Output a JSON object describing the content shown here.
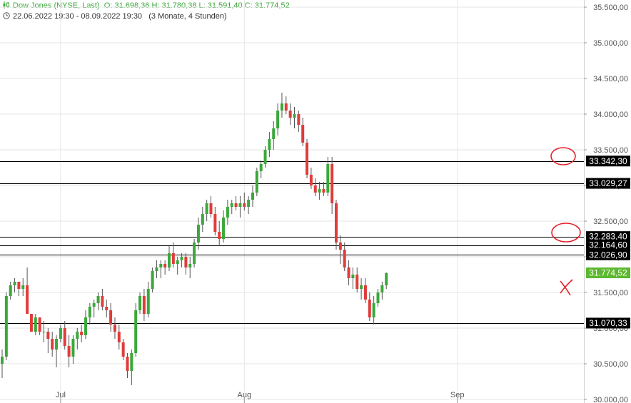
{
  "header": {
    "symbol": "Dow Jones (NYSE, Last)",
    "ohlc": "O: 31.698,36   H: 31.780,38   L: 31.591,40   C: 31.774,52",
    "range": "22.06.2022 19:30 - 08.09.2022 19:30",
    "period": "(3 Monate, 4 Stunden)"
  },
  "chart_data": {
    "type": "candlestick",
    "ylim": [
      29950,
      35600
    ],
    "y_ticks": [
      "30.000,00",
      "30.500,00",
      "31.000,00",
      "31.500,00",
      "32.000,00",
      "32.500,00",
      "33.000,00",
      "33.500,00",
      "34.000,00",
      "34.500,00",
      "35.000,00",
      "35.500,00"
    ],
    "y_tick_values": [
      30000,
      30500,
      31000,
      31500,
      32000,
      32500,
      33000,
      33500,
      34000,
      34500,
      35000,
      35500
    ],
    "x_labels": [
      {
        "label": "Jul",
        "index": 14
      },
      {
        "label": "Aug",
        "index": 58
      },
      {
        "label": "Sep",
        "index": 109
      }
    ],
    "candles": [
      [
        30500,
        30700,
        30300,
        30600
      ],
      [
        30600,
        31500,
        30550,
        31450
      ],
      [
        31450,
        31650,
        31400,
        31600
      ],
      [
        31600,
        31700,
        31500,
        31650
      ],
      [
        31650,
        31650,
        31450,
        31550
      ],
      [
        31550,
        31700,
        31450,
        31600
      ],
      [
        31600,
        31850,
        31200,
        31200
      ],
      [
        31200,
        31200,
        30950,
        30950
      ],
      [
        30950,
        31200,
        30900,
        31150
      ],
      [
        31150,
        31150,
        30900,
        30950
      ],
      [
        30950,
        31100,
        30800,
        30950
      ],
      [
        30950,
        31000,
        30650,
        30850
      ],
      [
        30850,
        30950,
        30600,
        30700
      ],
      [
        30700,
        30900,
        30450,
        30850
      ],
      [
        30850,
        31050,
        30800,
        31000
      ],
      [
        31000,
        31100,
        30700,
        30750
      ],
      [
        30750,
        30900,
        30450,
        30600
      ],
      [
        30600,
        30900,
        30500,
        30850
      ],
      [
        30850,
        31000,
        30700,
        30950
      ],
      [
        30950,
        31050,
        30800,
        30900
      ],
      [
        30900,
        31250,
        30850,
        31150
      ],
      [
        31150,
        31350,
        31050,
        31300
      ],
      [
        31300,
        31400,
        31150,
        31350
      ],
      [
        31350,
        31500,
        31250,
        31450
      ],
      [
        31450,
        31550,
        31250,
        31300
      ],
      [
        31300,
        31400,
        31150,
        31250
      ],
      [
        31250,
        31350,
        30950,
        31050
      ],
      [
        31050,
        31150,
        30850,
        30950
      ],
      [
        30950,
        31050,
        30700,
        30800
      ],
      [
        30800,
        30850,
        30550,
        30600
      ],
      [
        30600,
        30650,
        30300,
        30400
      ],
      [
        30400,
        30700,
        30200,
        30650
      ],
      [
        30650,
        31350,
        30600,
        31250
      ],
      [
        31250,
        31500,
        31200,
        31450
      ],
      [
        31450,
        31550,
        31100,
        31200
      ],
      [
        31200,
        31650,
        31150,
        31550
      ],
      [
        31550,
        31850,
        31500,
        31800
      ],
      [
        31800,
        31950,
        31700,
        31850
      ],
      [
        31850,
        31950,
        31700,
        31900
      ],
      [
        31900,
        31950,
        31750,
        31850
      ],
      [
        31850,
        32150,
        31800,
        32050
      ],
      [
        32050,
        32200,
        31850,
        31900
      ],
      [
        31900,
        32000,
        31750,
        31950
      ],
      [
        31950,
        32050,
        31850,
        32000
      ],
      [
        32000,
        32050,
        31750,
        31850
      ],
      [
        31850,
        32000,
        31700,
        31900
      ],
      [
        31900,
        32250,
        31850,
        32200
      ],
      [
        32200,
        32550,
        32100,
        32450
      ],
      [
        32450,
        32700,
        32350,
        32600
      ],
      [
        32600,
        32800,
        32500,
        32750
      ],
      [
        32750,
        32850,
        32550,
        32600
      ],
      [
        32600,
        32700,
        32300,
        32350
      ],
      [
        32350,
        32500,
        32150,
        32250
      ],
      [
        32250,
        32650,
        32200,
        32550
      ],
      [
        32550,
        32800,
        32450,
        32700
      ],
      [
        32700,
        32800,
        32600,
        32750
      ],
      [
        32750,
        32850,
        32650,
        32700
      ],
      [
        32700,
        32850,
        32550,
        32750
      ],
      [
        32750,
        32900,
        32650,
        32700
      ],
      [
        32700,
        32850,
        32600,
        32800
      ],
      [
        32800,
        33000,
        32700,
        32900
      ],
      [
        32900,
        33250,
        32850,
        33200
      ],
      [
        33200,
        33350,
        33100,
        33300
      ],
      [
        33300,
        33550,
        33250,
        33500
      ],
      [
        33500,
        33750,
        33400,
        33650
      ],
      [
        33650,
        33900,
        33500,
        33800
      ],
      [
        33800,
        34150,
        33700,
        34050
      ],
      [
        34050,
        34300,
        33950,
        34150
      ],
      [
        34150,
        34250,
        34000,
        34050
      ],
      [
        34050,
        34150,
        33850,
        33950
      ],
      [
        33950,
        34100,
        33800,
        34000
      ],
      [
        34000,
        34050,
        33750,
        33850
      ],
      [
        33850,
        33950,
        33550,
        33600
      ],
      [
        33600,
        33650,
        33100,
        33150
      ],
      [
        33150,
        33250,
        32950,
        33000
      ],
      [
        33000,
        33100,
        32850,
        32900
      ],
      [
        32900,
        33050,
        32800,
        32950
      ],
      [
        32950,
        33050,
        32850,
        32900
      ],
      [
        32900,
        33400,
        32850,
        33300
      ],
      [
        33300,
        33400,
        32600,
        32750
      ],
      [
        32750,
        32800,
        32100,
        32200
      ],
      [
        32200,
        32300,
        31900,
        32100
      ],
      [
        32100,
        32200,
        31800,
        31850
      ],
      [
        31850,
        31950,
        31600,
        31700
      ],
      [
        31700,
        31850,
        31550,
        31750
      ],
      [
        31750,
        31850,
        31500,
        31550
      ],
      [
        31550,
        31700,
        31400,
        31600
      ],
      [
        31600,
        31700,
        31350,
        31400
      ],
      [
        31400,
        31500,
        31100,
        31150
      ],
      [
        31150,
        31450,
        31050,
        31350
      ],
      [
        31350,
        31550,
        31300,
        31500
      ],
      [
        31500,
        31650,
        31400,
        31600
      ],
      [
        31600,
        31780,
        31550,
        31770
      ]
    ],
    "levels": [
      {
        "value": 33342.3,
        "label": "33.342,30"
      },
      {
        "value": 33029.27,
        "label": "33.029,27"
      },
      {
        "value": 32283.4,
        "label": "32.283,40"
      },
      {
        "value": 32164.6,
        "label": "32.164,60"
      },
      {
        "value": 32026.9,
        "label": "32.026,90"
      },
      {
        "value": 31070.33,
        "label": "31.070,33"
      }
    ],
    "current": {
      "value": 31774.52,
      "label": "31.774,52",
      "color": "#5cb82e"
    },
    "colors": {
      "up": "#3aa83a",
      "down": "#e03c3c",
      "grid": "#e6e6e6",
      "level": "#000000",
      "annotation": "#e8202a"
    }
  }
}
